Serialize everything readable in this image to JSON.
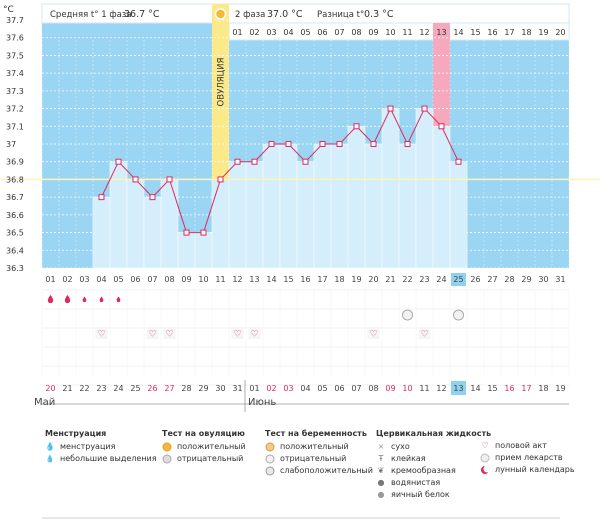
{
  "header": {
    "phase1_label": "Средняя t° 1 фаза",
    "phase1_value": "36.7 °C",
    "phase2_label": "2 фаза",
    "phase2_value": "37.0 °C",
    "diff_label": "Разница t°",
    "diff_value": "0.3 °C",
    "unit": "°C",
    "ovulation_label": "ОВУЛЯЦИЯ"
  },
  "chart_data": {
    "type": "line",
    "ylabel": "°C",
    "ylim": [
      36.3,
      37.7
    ],
    "yticks": [
      "37.7",
      "37.6",
      "37.5",
      "37.4",
      "37.3",
      "37.2",
      "37.1",
      "37",
      "36.9",
      "36.8",
      "36.7",
      "36.6",
      "36.5",
      "36.4",
      "36.3"
    ],
    "x": [
      "01",
      "02",
      "03",
      "04",
      "05",
      "06",
      "07",
      "08",
      "09",
      "10",
      "11",
      "12",
      "13",
      "14",
      "15",
      "16",
      "17",
      "18",
      "19",
      "20",
      "21",
      "22",
      "23",
      "24",
      "25",
      "26",
      "27",
      "28",
      "29",
      "30",
      "31"
    ],
    "series": [
      {
        "values": [
          null,
          null,
          null,
          36.7,
          36.9,
          36.8,
          36.7,
          36.8,
          36.5,
          36.5,
          36.8,
          36.9,
          36.9,
          37.0,
          37.0,
          36.9,
          37.0,
          37.0,
          37.1,
          37.0,
          37.2,
          37.0,
          37.2,
          37.1,
          36.9,
          null,
          null,
          null,
          null,
          null,
          null
        ]
      }
    ],
    "coverline": 36.8,
    "ovulation_day": "11",
    "current_day": "25",
    "phase2_days": [
      "01",
      "02",
      "03",
      "04",
      "05",
      "06",
      "07",
      "08",
      "09",
      "10",
      "11",
      "12",
      "13",
      "14",
      "15",
      "16",
      "17",
      "18",
      "19",
      "20"
    ],
    "highlight_phase2_day": "13",
    "menstruation": [
      "01",
      "02",
      "03",
      "04",
      "05"
    ],
    "menstruation_heavy": [
      "01",
      "02"
    ],
    "intercourse": [
      "04",
      "07",
      "08",
      "12",
      "13",
      "20",
      "23"
    ],
    "pregnancy_test_days": [
      "22",
      "25"
    ],
    "dates": [
      "20",
      "21",
      "22",
      "23",
      "24",
      "25",
      "26",
      "27",
      "28",
      "29",
      "30",
      "31",
      "01",
      "02",
      "03",
      "04",
      "05",
      "06",
      "07",
      "08",
      "09",
      "10",
      "11",
      "12",
      "13",
      "14",
      "15",
      "16",
      "17",
      "18",
      "19"
    ],
    "weekend_dates": [
      "20",
      "26",
      "27",
      "02",
      "03",
      "09",
      "10",
      "16",
      "17"
    ],
    "current_date": "13",
    "grid": true
  },
  "months": [
    "Май",
    "Июнь"
  ],
  "legend": {
    "menstruation": {
      "title": "Менструация",
      "items": [
        "менструация",
        "небольшие выделения"
      ]
    },
    "ovulation_test": {
      "title": "Тест на овуляцию",
      "items": [
        "положительный",
        "отрицательный"
      ]
    },
    "pregnancy_test": {
      "title": "Тест на беременность",
      "items": [
        "положительный",
        "отрицательный",
        "слабоположительный"
      ]
    },
    "cervical": {
      "title": "Цервикальная жидкость",
      "items": [
        "сухо",
        "клейкая",
        "кремообразная",
        "водянистая",
        "яичный белок"
      ]
    },
    "other": {
      "items": [
        "половой акт",
        "прием лекарств",
        "лунный календарь"
      ]
    }
  },
  "colors": {
    "sky": "#9ad6f3",
    "bar": "#d4eefb",
    "line": "#e0285e",
    "ovulation": "#fbe98a",
    "highlight": "#f6a8bd",
    "weekend": "#e0285e",
    "today": "#8ed1f0"
  }
}
